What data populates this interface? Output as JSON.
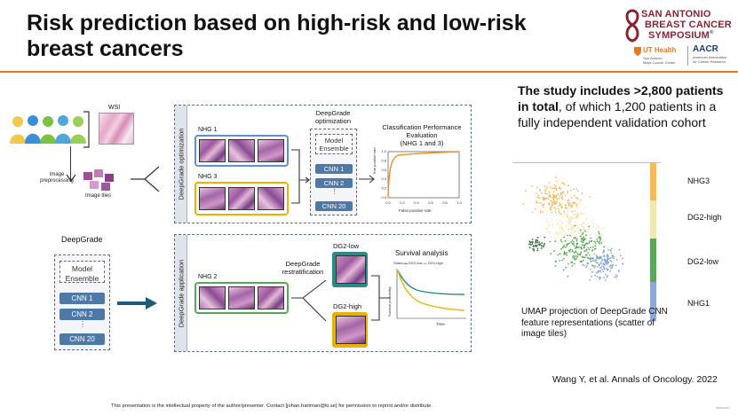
{
  "title": "Risk prediction based on high-risk and low-risk breast cancers",
  "logo": {
    "sabcs_line1": "SAN ANTONIO",
    "sabcs_line2": "BREAST CANCER",
    "sabcs_line3": "SYMPOSIUM",
    "sabcs_mark": "®",
    "uthealth": "UT Health",
    "uthealth_sub1": "San Antonio",
    "uthealth_sub2": "Mays Cancer Center",
    "aacr": "AACR",
    "aacr_sub1": "American Association",
    "aacr_sub2": "for Cancer Research"
  },
  "left": {
    "wsi_label": "WSI",
    "preprocessing_label_1": "Image",
    "preprocessing_label_2": "preprocessing",
    "tiles_label": "Image tiles",
    "deepgrade_label": "DeepGrade",
    "model_label_1": "Model",
    "model_label_2": "Ensemble",
    "cnn": [
      "CNN 1",
      "CNN 2",
      "⋮",
      "CNN 20"
    ]
  },
  "panel_opt": {
    "side_label": "DeepGrade optimization",
    "nhg1": "NHG 1",
    "nhg3": "NHG 3",
    "opt_title_1": "DeepGrade",
    "opt_title_2": "optimization",
    "model_label_1": "Model",
    "model_label_2": "Ensemble",
    "cnn": [
      "CNN 1",
      "CNN 2",
      "⋮",
      "CNN 20"
    ],
    "eval_title_1": "Classification Performance",
    "eval_title_2": "Evaluation",
    "eval_title_3": "(NHG 1 and 3)",
    "roc_ylabel": "True positive rate",
    "roc_xlabel": "False positive rate",
    "roc_xticks": [
      "0.0",
      "0.2",
      "0.4",
      "0.6",
      "0.8",
      "1.0"
    ],
    "roc_yticks": [
      "0.0",
      "0.2",
      "0.4",
      "0.6",
      "0.8",
      "1.0"
    ]
  },
  "panel_app": {
    "side_label": "DeepGrade application",
    "nhg2": "NHG 2",
    "restrat_1": "DeepGrade",
    "restrat_2": "restratification",
    "dg2_low": "DG2-low",
    "dg2_high": "DG2-high",
    "survival_title": "Survival analysis",
    "strata_label": "Strata",
    "strata_low": "DG2-low",
    "strata_high": "DG2-high",
    "surv_ylabel": "Survival probability",
    "surv_xlabel": "Time"
  },
  "study_text": {
    "bold": "The study includes >2,800 patients in total",
    "rest": ", of which 1,200 patients in a fully independent validation cohort"
  },
  "umap_text": "UMAP projection of DeepGrade CNN feature representations (scatter of image tiles)",
  "legend": [
    "NHG3",
    "DG2-high",
    "DG2-low",
    "NHG1"
  ],
  "legend_colors": {
    "NHG3": "#f5b95a",
    "DG2-high": "#f1e9b3",
    "DG2-low": "#5aa65a",
    "NHG1": "#8fa8d8"
  },
  "citation": "Wang Y, et al. Annals of Oncology. 2022",
  "footer": "This presentation is the intellectual property of the author/presenter. Contact [johan.hartman@ki.se] for permission to reprint and/or distribute.",
  "date_mark": "2024/12/26"
}
